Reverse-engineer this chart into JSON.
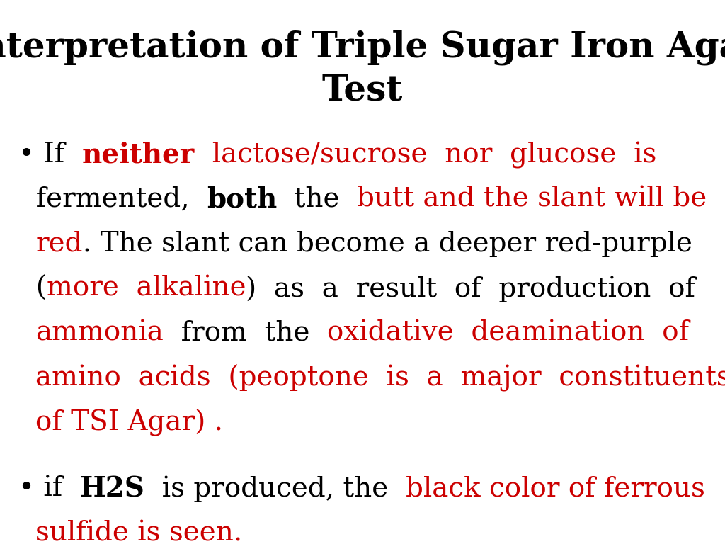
{
  "title_line1": "Interpretation of Triple Sugar Iron Agar",
  "title_line2": "Test",
  "title_color": "#000000",
  "title_fontsize": 36,
  "background_color": "#ffffff",
  "bullet1_segments": [
    {
      "text": "• If ",
      "color": "#000000",
      "bold": false
    },
    {
      "text": "neither",
      "color": "#cc0000",
      "bold": true
    },
    {
      "text": " lactose/sucrose  nor  glucose  is\n  fermented, ",
      "color": "#cc0000",
      "bold": false
    },
    {
      "text": "both",
      "color": "#000000",
      "bold": true
    },
    {
      "text": " the ",
      "color": "#000000",
      "bold": false
    },
    {
      "text": "butt and the slant will be\n  red",
      "color": "#cc0000",
      "bold": false
    },
    {
      "text": ". The slant can become a deeper red-purple\n  (",
      "color": "#000000",
      "bold": false
    },
    {
      "text": "more  alkaline",
      "color": "#cc0000",
      "bold": false
    },
    {
      "text": ")  as  a  result  of  production  of\n  ",
      "color": "#000000",
      "bold": false
    },
    {
      "text": "ammonia",
      "color": "#cc0000",
      "bold": false
    },
    {
      "text": "  from  the  ",
      "color": "#000000",
      "bold": false
    },
    {
      "text": "oxidative  deamination  of\n  amino  acids  (peoptone  is  a  major  constituents\n  of TSI Agar) .",
      "color": "#cc0000",
      "bold": false
    }
  ],
  "bullet2_segments": [
    {
      "text": "• if ",
      "color": "#000000",
      "bold": false
    },
    {
      "text": "H2S",
      "color": "#000000",
      "bold": true
    },
    {
      "text": " is produced, the ",
      "color": "#000000",
      "bold": false
    },
    {
      "text": "black color of ferrous\n  sulfide is seen.",
      "color": "#cc0000",
      "bold": false
    }
  ],
  "body_fontsize": 28
}
